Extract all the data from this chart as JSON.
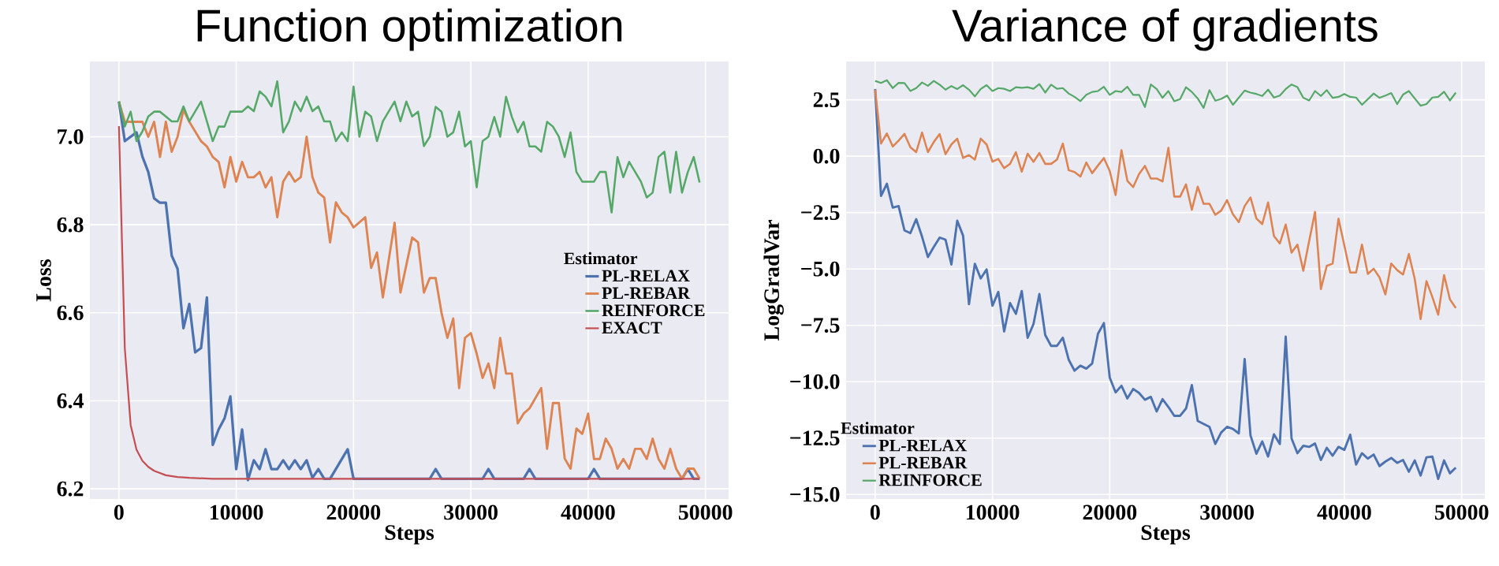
{
  "chart_data": [
    {
      "type": "line",
      "title": "Function optimization",
      "xlabel": "Steps",
      "ylabel": "Loss",
      "legend_title": "Estimator",
      "legend": "right",
      "grid": true,
      "xlim": [
        -2475,
        51975
      ],
      "ylim": [
        6.177,
        7.171
      ],
      "xticks": [
        0,
        10000,
        20000,
        30000,
        40000,
        50000
      ],
      "yticks": [
        6.2,
        6.4,
        6.6,
        6.8,
        {
          "value": 7,
          "label": "7.0"
        }
      ],
      "series": [
        {
          "name": "PL-RELAX",
          "color": "#4c72b0",
          "x": [
            0,
            500,
            1500,
            2000,
            2500,
            3000,
            3500,
            4000,
            4500,
            5000,
            5500,
            6000,
            6500,
            7000,
            7500,
            8000,
            8500,
            9000,
            9500,
            10000,
            10500,
            11000,
            11500,
            12000,
            12500,
            13000,
            13500,
            14000,
            14500,
            15000,
            15500,
            16000,
            16500,
            17000,
            17500,
            18000,
            19500,
            20000,
            26500,
            27000,
            27500,
            31000,
            31500,
            32000,
            34500,
            35000,
            35500,
            40000,
            40500,
            41000,
            48000,
            48500,
            49000,
            49500
          ],
          "values": [
            7.08,
            6.99,
            7.01,
            6.955,
            6.92,
            6.86,
            6.85,
            6.85,
            6.73,
            6.7,
            6.565,
            6.62,
            6.51,
            6.52,
            6.635,
            6.3,
            6.335,
            6.36,
            6.41,
            6.245,
            6.335,
            6.22,
            6.265,
            6.245,
            6.29,
            6.245,
            6.245,
            6.265,
            6.245,
            6.265,
            6.245,
            6.265,
            6.225,
            6.245,
            6.223,
            6.223,
            6.29,
            6.223,
            6.223,
            6.245,
            6.223,
            6.223,
            6.245,
            6.223,
            6.223,
            6.245,
            6.223,
            6.223,
            6.245,
            6.223,
            6.223,
            6.245,
            6.223,
            6.223
          ]
        },
        {
          "name": "PL-REBAR",
          "color": "#dd8452",
          "x": [
            0,
            500,
            2000,
            2500,
            3000,
            3500,
            4000,
            4500,
            5000,
            5500,
            6000,
            7000,
            7500,
            8000,
            8500,
            9000,
            9500,
            10000,
            10500,
            11000,
            11500,
            12000,
            12500,
            13000,
            13500,
            14000,
            14500,
            15000,
            15500,
            16000,
            16500,
            17000,
            17500,
            18000,
            18500,
            19000,
            19500,
            20000,
            21000,
            21500,
            22000,
            22500,
            23500,
            24000,
            25000,
            25500,
            26000,
            26500,
            27000,
            27500,
            28000,
            28500,
            29000,
            29500,
            30000,
            30500,
            31000,
            31500,
            32000,
            32500,
            33000,
            33500,
            34000,
            34500,
            35000,
            36000,
            36500,
            37000,
            37500,
            38000,
            38500,
            39000,
            39500,
            40000,
            40500,
            41000,
            41500,
            42000,
            42500,
            43000,
            43500,
            44000,
            44500,
            45000,
            45500,
            46000,
            46500,
            47000,
            47500,
            48000,
            48500,
            49000,
            49500
          ],
          "values": [
            7.08,
            7.034,
            7.034,
            7.0,
            7.034,
            6.954,
            7.034,
            6.966,
            7.0,
            7.061,
            7.034,
            6.99,
            6.978,
            6.954,
            6.943,
            6.885,
            6.954,
            6.898,
            6.943,
            6.908,
            6.908,
            6.92,
            6.885,
            6.908,
            6.817,
            6.898,
            6.92,
            6.898,
            6.908,
            7.0,
            6.908,
            6.873,
            6.862,
            6.76,
            6.851,
            6.828,
            6.817,
            6.794,
            6.817,
            6.702,
            6.737,
            6.635,
            6.805,
            6.646,
            6.771,
            6.76,
            6.646,
            6.679,
            6.679,
            6.6,
            6.543,
            6.587,
            6.429,
            6.543,
            6.554,
            6.507,
            6.452,
            6.485,
            6.429,
            6.543,
            6.462,
            6.462,
            6.349,
            6.371,
            6.383,
            6.429,
            6.291,
            6.395,
            6.395,
            6.269,
            6.246,
            6.337,
            6.325,
            6.371,
            6.268,
            6.268,
            6.314,
            6.291,
            6.246,
            6.268,
            6.246,
            6.291,
            6.291,
            6.268,
            6.314,
            6.268,
            6.246,
            6.291,
            6.246,
            6.223,
            6.246,
            6.246,
            6.223
          ]
        },
        {
          "name": "REINFORCE",
          "color": "#55a868",
          "x": [
            0,
            500,
            1000,
            1500,
            2000,
            2500,
            3000,
            3500,
            4000,
            4500,
            5000,
            5500,
            6000,
            7000,
            8000,
            8500,
            9000,
            9500,
            10500,
            11000,
            11500,
            12000,
            12500,
            13000,
            13500,
            14000,
            14500,
            15000,
            15500,
            16000,
            16500,
            17000,
            17500,
            18000,
            18500,
            19000,
            19500,
            20000,
            20500,
            21000,
            21500,
            22000,
            22500,
            23500,
            24000,
            24500,
            25000,
            25500,
            26000,
            26500,
            27000,
            27500,
            28000,
            28500,
            29000,
            29500,
            30000,
            30500,
            31000,
            31500,
            32000,
            32500,
            33000,
            33500,
            34000,
            34500,
            35000,
            35500,
            36000,
            36500,
            37000,
            37500,
            38000,
            38500,
            39000,
            39500,
            40500,
            41000,
            41500,
            42000,
            42500,
            43000,
            43500,
            44500,
            45000,
            45500,
            46000,
            46500,
            47000,
            47500,
            48000,
            48500,
            49000,
            49500
          ],
          "values": [
            7.08,
            7.023,
            7.057,
            6.99,
            7.012,
            7.046,
            7.057,
            7.057,
            7.046,
            7.035,
            7.035,
            7.069,
            7.035,
            7.08,
            6.99,
            7.023,
            7.023,
            7.057,
            7.057,
            7.069,
            7.058,
            7.103,
            7.091,
            7.069,
            7.126,
            7.01,
            7.035,
            7.08,
            7.058,
            7.091,
            7.058,
            7.069,
            7.035,
            7.035,
            6.99,
            7.01,
            6.99,
            7.114,
            7.0,
            7.057,
            7.046,
            6.99,
            7.035,
            7.08,
            7.035,
            7.08,
            7.046,
            7.057,
            6.979,
            7.0,
            7.068,
            7.057,
            7.0,
            7.01,
            7.057,
            6.978,
            6.99,
            6.885,
            6.99,
            7.0,
            7.045,
            7.0,
            7.091,
            7.045,
            7.01,
            7.034,
            6.978,
            6.978,
            6.966,
            7.034,
            7.023,
            7.0,
            6.954,
            7.01,
            6.92,
            6.898,
            6.898,
            6.92,
            6.92,
            6.828,
            6.954,
            6.908,
            6.943,
            6.898,
            6.862,
            6.873,
            6.954,
            6.966,
            6.873,
            6.966,
            6.873,
            6.92,
            6.954,
            6.896
          ]
        },
        {
          "name": "EXACT",
          "color": "#c44e52",
          "x": [
            0,
            500,
            1000,
            1500,
            2000,
            2500,
            3000,
            4000,
            5000,
            6000,
            8000,
            49500
          ],
          "values": [
            7.024,
            6.52,
            6.345,
            6.289,
            6.264,
            6.25,
            6.241,
            6.231,
            6.227,
            6.225,
            6.223,
            6.223
          ]
        }
      ]
    },
    {
      "type": "line",
      "title": "Variance of gradients",
      "xlabel": "Steps",
      "ylabel": "LogGradVar",
      "legend_title": "Estimator",
      "legend": "bottom left",
      "grid": true,
      "xlim": [
        -2475,
        51975
      ],
      "ylim": [
        -15.2,
        4.2
      ],
      "xticks": [
        0,
        10000,
        20000,
        30000,
        40000,
        50000
      ],
      "yticks": [
        {
          "value": -15,
          "label": "−15.0"
        },
        {
          "value": -12.5,
          "label": "−12.5"
        },
        {
          "value": -10,
          "label": "−10.0"
        },
        {
          "value": -7.5,
          "label": "−7.5"
        },
        {
          "value": -5,
          "label": "−5.0"
        },
        {
          "value": -2.5,
          "label": "−2.5"
        },
        {
          "value": 0,
          "label": "0.0"
        },
        2.5
      ],
      "x": [
        0,
        500,
        1000,
        1500,
        2000,
        2500,
        3000,
        3500,
        4000,
        4500,
        5000,
        5500,
        6000,
        6500,
        7000,
        7500,
        8000,
        8500,
        9000,
        9500,
        10000,
        10500,
        11000,
        11500,
        12000,
        12500,
        13000,
        13500,
        14000,
        14500,
        15000,
        15500,
        16000,
        16500,
        17000,
        17500,
        18000,
        18500,
        19000,
        19500,
        20000,
        20500,
        21000,
        21500,
        22000,
        22500,
        23000,
        23500,
        24000,
        24500,
        25000,
        25500,
        26000,
        26500,
        27000,
        27500,
        28000,
        28500,
        29000,
        29500,
        30000,
        30500,
        31000,
        31500,
        32000,
        32500,
        33000,
        33500,
        34000,
        34500,
        35000,
        35500,
        36000,
        36500,
        37000,
        37500,
        38000,
        38500,
        39000,
        39500,
        40000,
        40500,
        41000,
        41500,
        42000,
        42500,
        43000,
        43500,
        44000,
        44500,
        45000,
        45500,
        46000,
        46500,
        47000,
        47500,
        48000,
        48500,
        49000,
        49500
      ],
      "series": [
        {
          "name": "PL-RELAX",
          "color": "#4c72b0",
          "values": [
            2.98,
            -1.76,
            -1.22,
            -2.28,
            -2.21,
            -3.29,
            -3.41,
            -2.79,
            -3.57,
            -4.47,
            -4.02,
            -3.61,
            -3.7,
            -4.8,
            -2.86,
            -3.53,
            -6.56,
            -4.77,
            -5.42,
            -5.02,
            -6.63,
            -6.02,
            -7.77,
            -6.51,
            -6.99,
            -5.98,
            -8.05,
            -7.44,
            -6.11,
            -7.93,
            -8.41,
            -8.41,
            -8.05,
            -9.02,
            -9.51,
            -9.29,
            -9.42,
            -9.19,
            -7.87,
            -7.4,
            -9.82,
            -10.47,
            -10.18,
            -10.74,
            -10.32,
            -10.5,
            -10.8,
            -10.67,
            -11.32,
            -10.77,
            -11.12,
            -11.51,
            -11.51,
            -11.19,
            -10.15,
            -11.74,
            -11.87,
            -12.0,
            -12.76,
            -12.25,
            -12.0,
            -12.09,
            -12.29,
            -8.99,
            -12.38,
            -13.19,
            -12.65,
            -13.32,
            -12.33,
            -12.76,
            -8.0,
            -12.52,
            -13.17,
            -12.84,
            -12.89,
            -12.74,
            -13.47,
            -12.93,
            -13.28,
            -12.89,
            -13.02,
            -12.35,
            -13.67,
            -13.17,
            -13.41,
            -13.23,
            -13.74,
            -13.54,
            -13.38,
            -13.6,
            -13.47,
            -13.99,
            -13.49,
            -14.16,
            -13.35,
            -13.32,
            -14.31,
            -13.49,
            -14.06,
            -13.81
          ]
        },
        {
          "name": "PL-REBAR",
          "color": "#dd8452",
          "values": [
            2.95,
            0.56,
            1.01,
            0.43,
            0.69,
            0.99,
            0.4,
            0.18,
            1.05,
            0.18,
            0.63,
            0.98,
            0.09,
            0.52,
            0.78,
            -0.08,
            0.05,
            -0.15,
            0.78,
            0.52,
            -0.24,
            -0.12,
            -0.53,
            -0.34,
            0.18,
            -0.69,
            0.11,
            -0.25,
            0.14,
            -0.34,
            -0.34,
            -0.15,
            0.56,
            -0.62,
            -0.7,
            -0.9,
            -0.28,
            -0.75,
            -0.41,
            -0.08,
            -0.66,
            -1.72,
            0.27,
            -1.09,
            -1.37,
            -0.79,
            -0.43,
            -0.99,
            -0.99,
            -1.12,
            0.37,
            -1.79,
            -1.79,
            -1.25,
            -2.38,
            -1.35,
            -2.11,
            -2.11,
            -2.6,
            -2.41,
            -1.95,
            -2.57,
            -2.92,
            -2.21,
            -1.83,
            -2.76,
            -3.01,
            -2.05,
            -3.54,
            -3.87,
            -3.03,
            -4.28,
            -3.92,
            -5.08,
            -3.76,
            -2.47,
            -5.89,
            -4.86,
            -4.76,
            -2.77,
            -3.96,
            -5.16,
            -5.16,
            -3.92,
            -5.22,
            -4.99,
            -5.38,
            -6.13,
            -4.76,
            -5.05,
            -5.25,
            -4.34,
            -5.44,
            -7.22,
            -5.54,
            -6.24,
            -7.03,
            -5.27,
            -6.35,
            -6.73
          ]
        },
        {
          "name": "REINFORCE",
          "color": "#55a868",
          "values": [
            3.34,
            3.25,
            3.37,
            3.02,
            3.25,
            3.24,
            2.89,
            3.02,
            3.27,
            3.12,
            3.34,
            3.17,
            2.95,
            3.11,
            2.98,
            3.15,
            2.95,
            2.65,
            2.98,
            3.15,
            2.89,
            3.02,
            2.99,
            2.89,
            3.06,
            3.03,
            3.06,
            2.99,
            3.2,
            2.82,
            3.17,
            2.99,
            3.02,
            2.78,
            2.63,
            2.44,
            2.72,
            2.85,
            2.89,
            3.08,
            2.72,
            2.89,
            2.85,
            3.08,
            2.72,
            2.72,
            2.18,
            3.18,
            2.98,
            2.59,
            2.89,
            2.44,
            2.53,
            3.06,
            2.85,
            2.56,
            2.14,
            2.93,
            2.46,
            2.54,
            2.69,
            2.28,
            2.59,
            2.91,
            2.82,
            2.76,
            2.67,
            2.95,
            2.6,
            2.69,
            2.98,
            3.18,
            3.06,
            2.59,
            2.47,
            2.89,
            2.67,
            2.93,
            2.59,
            2.63,
            2.76,
            2.63,
            2.6,
            2.28,
            2.53,
            2.78,
            2.59,
            2.69,
            2.8,
            2.31,
            2.73,
            2.89,
            2.56,
            2.24,
            2.31,
            2.6,
            2.63,
            2.86,
            2.47,
            2.82
          ]
        }
      ]
    }
  ]
}
